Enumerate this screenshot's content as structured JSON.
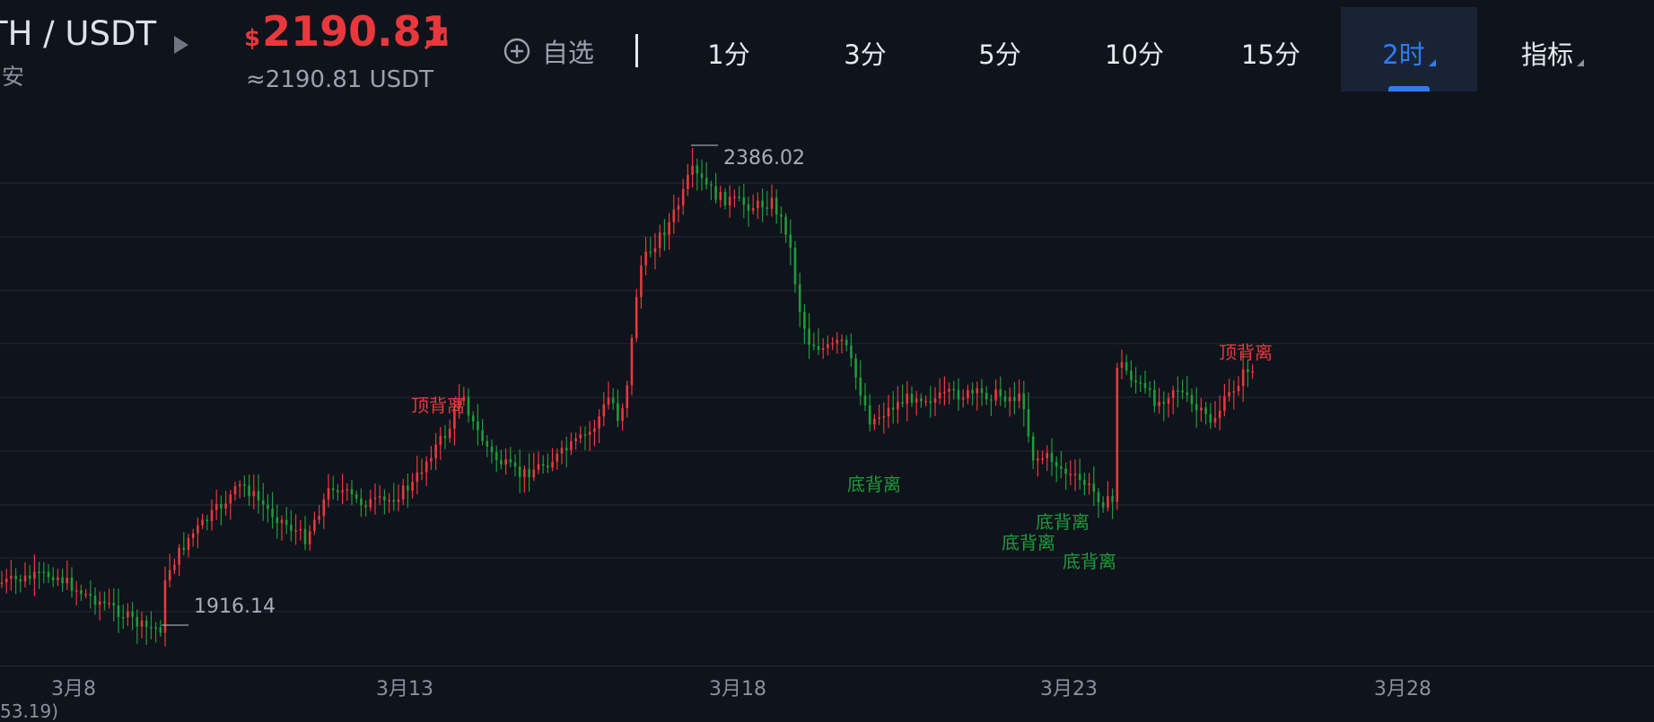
{
  "header": {
    "pair": "TH / USDT",
    "exchange": "安",
    "price_currency": "$",
    "price": "2190.81",
    "equiv": "≈2190.81 USDT",
    "fav_label": "自选"
  },
  "timeframes": [
    {
      "label": "1分",
      "active": false
    },
    {
      "label": "3分",
      "active": false
    },
    {
      "label": "5分",
      "active": false
    },
    {
      "label": "10分",
      "active": false
    },
    {
      "label": "15分",
      "active": false
    },
    {
      "label": "2时",
      "active": true
    },
    {
      "label": "指标",
      "active": false
    }
  ],
  "colors": {
    "up": "#e8383d",
    "down": "#1e9b3a",
    "active": "#2f7cf6",
    "grid": "#222834",
    "background": "#0f131b"
  },
  "icons": {
    "play": "play-icon",
    "add": "plus-circle-icon",
    "arrow": "arrow-up-right-icon"
  },
  "chart_data": {
    "type": "candlestick",
    "x_tick_labels": [
      "3月8",
      "3月13",
      "3月18",
      "3月23",
      "3月28"
    ],
    "high_label": "2386.02",
    "low_label": "1916.14",
    "annotations": [
      {
        "text": "顶背离",
        "kind": "top"
      },
      {
        "text": "底背离",
        "kind": "bottom"
      },
      {
        "text": "底背离",
        "kind": "bottom"
      },
      {
        "text": "底背离",
        "kind": "bottom"
      },
      {
        "text": "底背离",
        "kind": "bottom"
      },
      {
        "text": "顶背离",
        "kind": "top"
      }
    ],
    "grid": true,
    "footnote": "53.19)"
  }
}
